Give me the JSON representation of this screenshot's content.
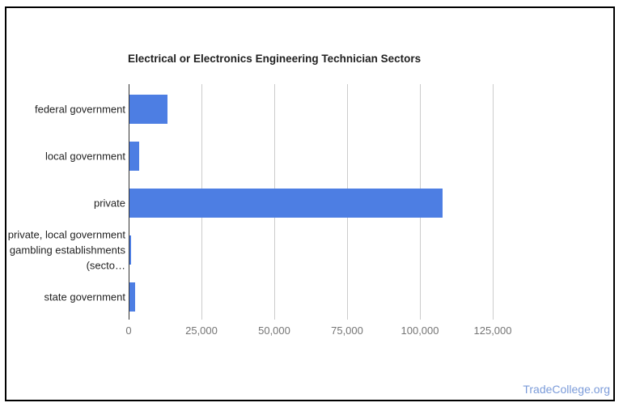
{
  "watermark": {
    "text": "TradeCollege.org",
    "color": "#7b9bd9"
  },
  "chart_data": {
    "type": "bar",
    "orientation": "horizontal",
    "title": "Electrical or Electronics Engineering Technician Sectors",
    "categories": [
      "federal government",
      "local government",
      "private",
      "private, local government gambling establishments (secto…",
      "state government"
    ],
    "values": [
      13000,
      3300,
      107500,
      500,
      1900
    ],
    "x_ticks": [
      "0",
      "25,000",
      "50,000",
      "75,000",
      "100,000",
      "125,000"
    ],
    "x_tick_values": [
      0,
      25000,
      50000,
      75000,
      100000,
      125000
    ],
    "xlim": [
      0,
      138000
    ],
    "grid": true,
    "legend": "none",
    "colors": {
      "bar": "#4d7ee3",
      "axis_line": "#333333",
      "gridline": "#cccccc",
      "tick_label": "#757575",
      "category_label": "#222222",
      "title": "#212121"
    }
  }
}
